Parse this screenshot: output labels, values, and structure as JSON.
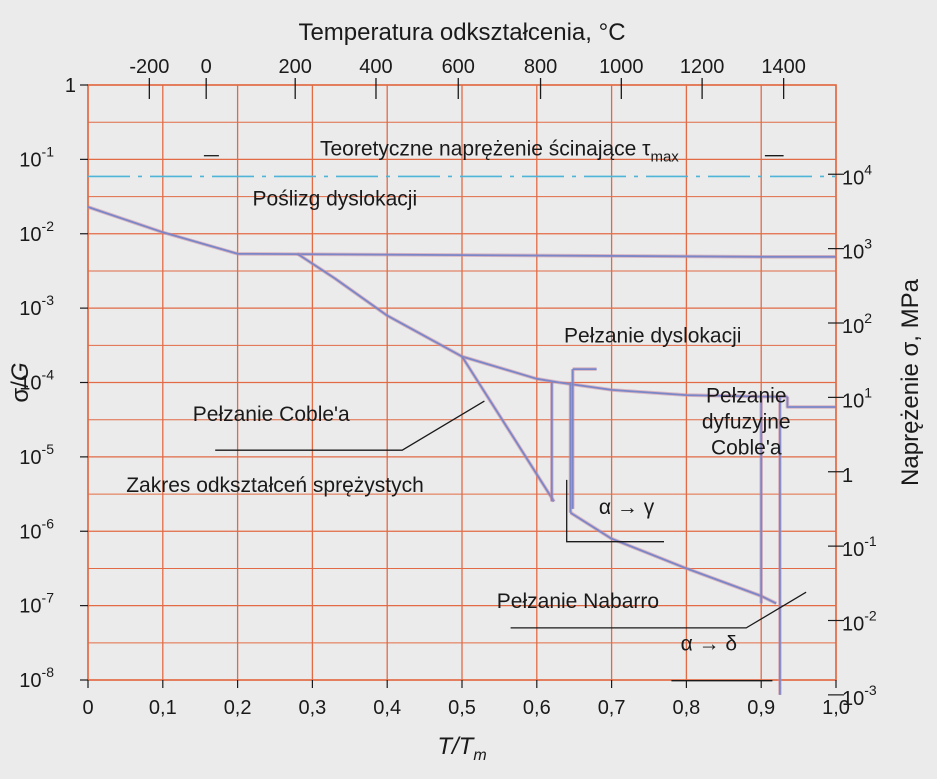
{
  "chart_data": {
    "type": "line",
    "top_axis": {
      "label": "Temperatura odkształcenia, °C",
      "ticks": [
        {
          "value": -200,
          "label": "-200"
        },
        {
          "value": 0,
          "label": "0"
        },
        {
          "value": 200,
          "label": "200"
        },
        {
          "value": 400,
          "label": "400"
        },
        {
          "value": 600,
          "label": "600"
        },
        {
          "value": 800,
          "label": "800"
        },
        {
          "value": 1000,
          "label": "1000"
        },
        {
          "value": 1200,
          "label": "1200"
        },
        {
          "value": 1400,
          "label": "1400"
        }
      ],
      "tick_positions_TTm": [
        0.082,
        0.158,
        0.277,
        0.385,
        0.495,
        0.605,
        0.713,
        0.821,
        0.93
      ]
    },
    "bottom_axis": {
      "label": "T/Tm",
      "label_main": "T/T",
      "label_sub": "m",
      "range": [
        0,
        1
      ],
      "ticks": [
        {
          "value": 0,
          "label": "0"
        },
        {
          "value": 0.1,
          "label": "0,1"
        },
        {
          "value": 0.2,
          "label": "0,2"
        },
        {
          "value": 0.3,
          "label": "0,3"
        },
        {
          "value": 0.4,
          "label": "0,4"
        },
        {
          "value": 0.5,
          "label": "0,5"
        },
        {
          "value": 0.6,
          "label": "0,6"
        },
        {
          "value": 0.7,
          "label": "0,7"
        },
        {
          "value": 0.8,
          "label": "0,8"
        },
        {
          "value": 0.9,
          "label": "0,9"
        },
        {
          "value": 1.0,
          "label": "1,0"
        }
      ]
    },
    "left_axis": {
      "label": "σ/G",
      "label_main": "σ/",
      "label_italic": "G",
      "scale": "log",
      "range": [
        -8,
        0
      ],
      "ticks": [
        {
          "exp": 0,
          "base": "1",
          "sup": ""
        },
        {
          "exp": -1,
          "base": "10",
          "sup": "-1"
        },
        {
          "exp": -2,
          "base": "10",
          "sup": "-2"
        },
        {
          "exp": -3,
          "base": "10",
          "sup": "-3"
        },
        {
          "exp": -4,
          "base": "10",
          "sup": "-4"
        },
        {
          "exp": -5,
          "base": "10",
          "sup": "-5"
        },
        {
          "exp": -6,
          "base": "10",
          "sup": "-6"
        },
        {
          "exp": -7,
          "base": "10",
          "sup": "-7"
        },
        {
          "exp": -8,
          "base": "10",
          "sup": "-8"
        }
      ]
    },
    "right_axis": {
      "label": "Naprężenie σ, MPa",
      "scale": "log",
      "ticks": [
        {
          "log_sigma_G": -1.2,
          "base": "10",
          "sup": "4"
        },
        {
          "log_sigma_G": -2.2,
          "base": "10",
          "sup": "3"
        },
        {
          "log_sigma_G": -3.2,
          "base": "10",
          "sup": "2"
        },
        {
          "log_sigma_G": -4.2,
          "base": "10",
          "sup": "1"
        },
        {
          "log_sigma_G": -5.2,
          "base": "1",
          "sup": ""
        },
        {
          "log_sigma_G": -6.2,
          "base": "10",
          "sup": "-1"
        },
        {
          "log_sigma_G": -7.2,
          "base": "10",
          "sup": "-2"
        },
        {
          "log_sigma_G": -8.2,
          "base": "10",
          "sup": "-3"
        }
      ]
    },
    "grid": true,
    "theoretical_stress_log": -1.23,
    "series": [
      {
        "points": [
          [
            0,
            -1.64
          ],
          [
            0.1,
            -1.98
          ],
          [
            0.2,
            -2.27
          ],
          [
            0.9,
            -2.31
          ],
          [
            1.0,
            -2.31
          ]
        ]
      },
      {
        "points": [
          [
            0.28,
            -2.27
          ],
          [
            0.33,
            -2.6
          ],
          [
            0.4,
            -3.1
          ],
          [
            0.5,
            -3.65
          ],
          [
            0.6,
            -3.95
          ],
          [
            0.63,
            -4.0
          ]
        ]
      },
      {
        "points": [
          [
            0.63,
            -4.0
          ],
          [
            0.7,
            -4.1
          ],
          [
            0.8,
            -4.17
          ],
          [
            0.9,
            -4.19
          ],
          [
            0.935,
            -4.19
          ]
        ]
      },
      {
        "points": [
          [
            0.5,
            -3.65
          ],
          [
            0.56,
            -4.6
          ],
          [
            0.623,
            -5.6
          ]
        ]
      },
      {
        "points": [
          [
            0.645,
            -5.75
          ],
          [
            0.7,
            -6.1
          ],
          [
            0.8,
            -6.5
          ],
          [
            0.9,
            -6.87
          ],
          [
            0.92,
            -6.97
          ]
        ]
      },
      {
        "points": [
          [
            0.62,
            -4.0
          ],
          [
            0.62,
            -5.6
          ]
        ]
      },
      {
        "points": [
          [
            0.645,
            -4.0
          ],
          [
            0.645,
            -5.75
          ]
        ]
      },
      {
        "points": [
          [
            0.648,
            -3.82
          ],
          [
            0.648,
            -5.7
          ]
        ]
      },
      {
        "points": [
          [
            0.648,
            -3.82
          ],
          [
            0.68,
            -3.82
          ]
        ]
      },
      {
        "points": [
          [
            0.9,
            -4.19
          ],
          [
            0.9,
            -6.97
          ]
        ]
      },
      {
        "points": [
          [
            0.925,
            -4.19
          ],
          [
            0.925,
            -8.2
          ]
        ]
      },
      {
        "points": [
          [
            0.935,
            -4.19
          ],
          [
            0.935,
            -4.33
          ],
          [
            1.0,
            -4.33
          ]
        ]
      }
    ],
    "annotations": [
      {
        "name": "tau-max",
        "text": "Teoretyczne naprężenie ścinające τ",
        "sub": "max",
        "at": [
          0.55,
          -0.95
        ],
        "line": [
          [
            0.155,
            -0.95
          ],
          [
            0.175,
            -0.95
          ]
        ],
        "line2": [
          [
            0.905,
            -0.95
          ],
          [
            0.93,
            -0.95
          ]
        ]
      },
      {
        "name": "dislocation-glide",
        "text": "Poślizg dyslokacji",
        "at": [
          0.33,
          -1.62
        ]
      },
      {
        "name": "dislocation-creep",
        "text": "Pełzanie dyslokacji",
        "at": [
          0.755,
          -3.46
        ]
      },
      {
        "name": "coble-creep",
        "text": "Pełzanie Coble'a",
        "at": [
          0.245,
          -4.52
        ],
        "line": [
          [
            0.17,
            -4.91
          ],
          [
            0.42,
            -4.91
          ],
          [
            0.53,
            -4.25
          ]
        ]
      },
      {
        "name": "diffusion-creep",
        "lines": [
          "Pełzanie",
          "dyfuzyjne",
          "Coble'a"
        ],
        "at": [
          0.88,
          -4.27
        ]
      },
      {
        "name": "elastic-range",
        "text": "Zakres odkształceń sprężystych",
        "at": [
          0.25,
          -5.47
        ]
      },
      {
        "name": "alpha-gamma",
        "text": "α → γ",
        "at": [
          0.72,
          -5.77
        ],
        "line": [
          [
            0.64,
            -5.31
          ],
          [
            0.64,
            -6.14
          ],
          [
            0.77,
            -6.14
          ]
        ]
      },
      {
        "name": "nabarro-creep",
        "text": "Pełzanie Nabarro",
        "at": [
          0.655,
          -7.03
        ],
        "line": [
          [
            0.565,
            -7.3
          ],
          [
            0.88,
            -7.3
          ],
          [
            0.96,
            -6.82
          ]
        ]
      },
      {
        "name": "alpha-delta",
        "text": "α → δ",
        "at": [
          0.83,
          -7.6
        ],
        "line": [
          [
            0.78,
            -8.01
          ],
          [
            0.915,
            -8.01
          ]
        ]
      }
    ]
  },
  "colors": {
    "background": "#ebebeb",
    "grid": "#e26b45",
    "curve": "#7a86c8",
    "curve_glow": "#c88aa0",
    "tau_dash": "#4fb5d8",
    "text": "#1a1a1a"
  }
}
